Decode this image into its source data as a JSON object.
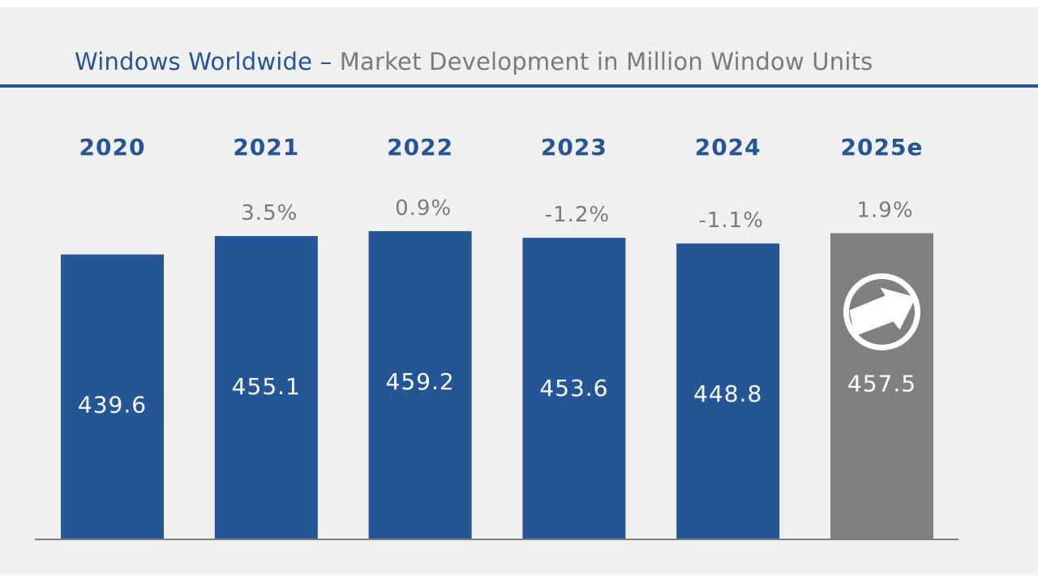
{
  "title": {
    "main": "Windows Worldwide",
    "dash": " – ",
    "sub": "Market Development in Million Window Units"
  },
  "colors": {
    "actual": "#245597",
    "estimate": "#808080",
    "axis": "#7f7f7f"
  },
  "chart_data": {
    "type": "bar",
    "title": "Windows Worldwide – Market Development in Million Window Units",
    "xlabel": "",
    "ylabel": "Million Window Units",
    "categories": [
      "2020",
      "2021",
      "2022",
      "2023",
      "2024",
      "2025e"
    ],
    "values": [
      439.6,
      455.1,
      459.2,
      453.6,
      448.8,
      457.5
    ],
    "value_labels": [
      "439.6",
      "455.1",
      "459.2",
      "453.6",
      "448.8",
      "457.5"
    ],
    "growth_labels": [
      "",
      "3.5%",
      "0.9%",
      "-1.2%",
      "-1.1%",
      "1.9%"
    ],
    "estimate_flags": [
      false,
      false,
      false,
      false,
      false,
      true
    ],
    "estimate_icon": "up-right-arrow-circle-icon",
    "grid": false,
    "legend": "none"
  }
}
